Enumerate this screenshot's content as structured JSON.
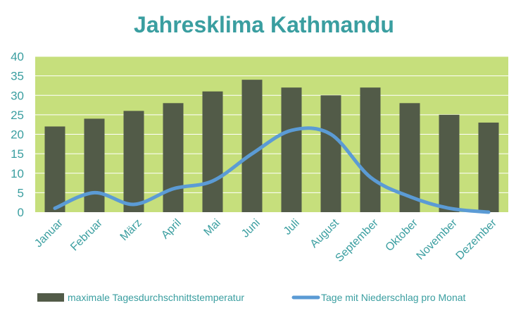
{
  "colors": {
    "plot_bg": "#c6df7c",
    "bar": "#525b48",
    "line": "#5b9bd5",
    "text": "#3a9ea0",
    "grid": "#ffffff"
  },
  "chart_data": {
    "type": "bar",
    "title": "Jahresklima Kathmandu",
    "xlabel": "",
    "ylabel": "",
    "ylim": [
      0,
      40
    ],
    "yticks": [
      0,
      5,
      10,
      15,
      20,
      25,
      30,
      35,
      40
    ],
    "grid": true,
    "legend_position": "bottom",
    "categories": [
      "Januar",
      "Februar",
      "März",
      "April",
      "Mai",
      "Juni",
      "Juli",
      "August",
      "September",
      "Oktober",
      "November",
      "Dezember"
    ],
    "series": [
      {
        "name": "maximale Tagesdurchschnittstemperatur",
        "type": "bar",
        "values": [
          22,
          24,
          26,
          28,
          31,
          34,
          32,
          30,
          32,
          28,
          25,
          23
        ]
      },
      {
        "name": "Tage mit Niederschlag pro Monat",
        "type": "line",
        "values": [
          1,
          5,
          2,
          6,
          8,
          15,
          21,
          20,
          9,
          4,
          1,
          0
        ]
      }
    ]
  }
}
